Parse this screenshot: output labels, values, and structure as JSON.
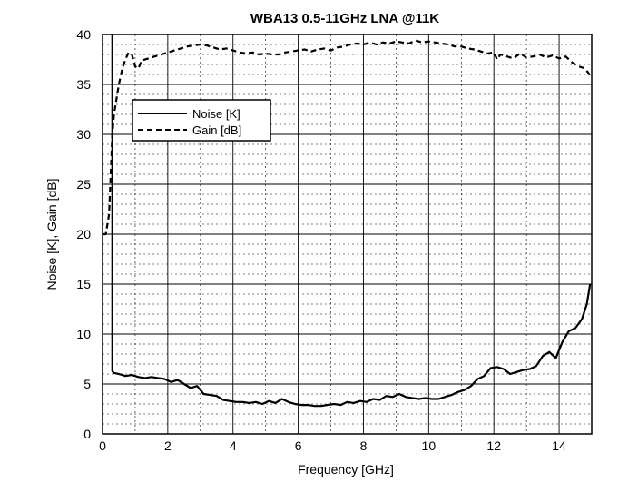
{
  "chart_data": {
    "type": "line",
    "title": "WBA13 0.5-11GHz LNA @11K",
    "xlabel": "Frequency [GHz]",
    "ylabel": "Noise [K], Gain [dB]",
    "xlim": [
      0,
      15
    ],
    "ylim": [
      0,
      40
    ],
    "xticks": [
      0,
      2,
      4,
      6,
      8,
      10,
      12,
      14
    ],
    "yticks": [
      0,
      5,
      10,
      15,
      20,
      25,
      30,
      35,
      40
    ],
    "xtick_labels": [
      "0",
      "2",
      "4",
      "6",
      "8",
      "10",
      "12",
      "14"
    ],
    "ytick_labels": [
      "0",
      "5",
      "10",
      "15",
      "20",
      "25",
      "30",
      "35",
      "40"
    ],
    "grid": true,
    "legend": {
      "placement": "upper-left"
    },
    "series": [
      {
        "name": "Noise [K]",
        "style": "solid",
        "x": [
          0.3,
          0.3,
          0.32,
          0.35,
          0.5,
          0.7,
          0.9,
          1.1,
          1.3,
          1.5,
          1.7,
          1.9,
          2.1,
          2.3,
          2.5,
          2.7,
          2.9,
          3.1,
          3.3,
          3.5,
          3.7,
          3.9,
          4.1,
          4.3,
          4.5,
          4.7,
          4.9,
          5.1,
          5.3,
          5.5,
          5.7,
          5.9,
          6.1,
          6.3,
          6.5,
          6.7,
          6.9,
          7.1,
          7.3,
          7.5,
          7.7,
          7.9,
          8.1,
          8.3,
          8.5,
          8.7,
          8.9,
          9.1,
          9.3,
          9.5,
          9.7,
          9.9,
          10.1,
          10.3,
          10.5,
          10.7,
          10.9,
          11.1,
          11.3,
          11.5,
          11.7,
          11.9,
          12.1,
          12.3,
          12.5,
          12.7,
          12.9,
          13.1,
          13.3,
          13.5,
          13.7,
          13.9,
          14.1,
          14.3,
          14.5,
          14.7,
          14.85,
          14.95
        ],
        "values": [
          40,
          6.3,
          6.2,
          6.1,
          6.0,
          5.8,
          5.9,
          5.7,
          5.6,
          5.7,
          5.6,
          5.5,
          5.2,
          5.4,
          5.0,
          4.6,
          4.8,
          4.0,
          3.9,
          3.8,
          3.4,
          3.3,
          3.2,
          3.2,
          3.1,
          3.2,
          3.0,
          3.3,
          3.1,
          3.5,
          3.2,
          3.0,
          2.9,
          2.9,
          2.8,
          2.8,
          2.9,
          3.0,
          2.9,
          3.2,
          3.1,
          3.3,
          3.2,
          3.5,
          3.4,
          3.8,
          3.7,
          4.0,
          3.7,
          3.6,
          3.5,
          3.6,
          3.5,
          3.5,
          3.7,
          3.9,
          4.2,
          4.4,
          4.8,
          5.5,
          5.8,
          6.6,
          6.7,
          6.5,
          6.0,
          6.2,
          6.4,
          6.5,
          6.8,
          7.8,
          8.2,
          7.6,
          9.2,
          10.3,
          10.6,
          11.5,
          13.0,
          15.0
        ]
      },
      {
        "name": "Gain [dB]",
        "style": "dashed",
        "x": [
          0.0,
          0.1,
          0.2,
          0.3,
          0.35,
          0.4,
          0.5,
          0.6,
          0.7,
          0.8,
          0.9,
          1.0,
          1.1,
          1.2,
          1.4,
          1.6,
          1.8,
          2.0,
          2.2,
          2.4,
          2.6,
          2.8,
          3.0,
          3.2,
          3.4,
          3.6,
          3.8,
          4.0,
          4.2,
          4.4,
          4.6,
          4.8,
          5.0,
          5.2,
          5.4,
          5.6,
          5.8,
          6.0,
          6.2,
          6.4,
          6.6,
          6.8,
          7.0,
          7.2,
          7.4,
          7.6,
          7.8,
          8.0,
          8.2,
          8.4,
          8.6,
          8.8,
          9.0,
          9.2,
          9.4,
          9.6,
          9.8,
          10.0,
          10.2,
          10.4,
          10.6,
          10.8,
          11.0,
          11.2,
          11.4,
          11.6,
          11.8,
          12.0,
          12.1,
          12.2,
          12.4,
          12.6,
          12.8,
          13.0,
          13.2,
          13.4,
          13.6,
          13.8,
          14.0,
          14.2,
          14.4,
          14.6,
          14.8,
          14.95
        ],
        "values": [
          20.0,
          20.0,
          22.0,
          30.0,
          32.0,
          33.0,
          35.0,
          36.5,
          37.5,
          38.2,
          38.0,
          36.8,
          36.6,
          37.4,
          37.6,
          37.8,
          38.0,
          38.2,
          38.4,
          38.6,
          38.8,
          38.9,
          39.0,
          38.9,
          38.7,
          38.5,
          38.6,
          38.4,
          38.2,
          38.1,
          38.2,
          38.0,
          38.1,
          38.0,
          38.0,
          38.2,
          38.3,
          38.4,
          38.5,
          38.3,
          38.5,
          38.6,
          38.4,
          38.7,
          38.8,
          39.0,
          39.1,
          39.0,
          39.2,
          39.0,
          39.2,
          39.1,
          39.3,
          39.2,
          39.1,
          39.4,
          39.2,
          39.3,
          39.2,
          39.1,
          39.0,
          38.8,
          38.8,
          38.6,
          38.5,
          38.3,
          38.1,
          38.2,
          37.5,
          38.0,
          37.8,
          37.6,
          38.1,
          37.7,
          37.8,
          38.0,
          37.7,
          37.9,
          37.6,
          37.8,
          37.2,
          36.8,
          36.6,
          35.9
        ]
      }
    ]
  }
}
